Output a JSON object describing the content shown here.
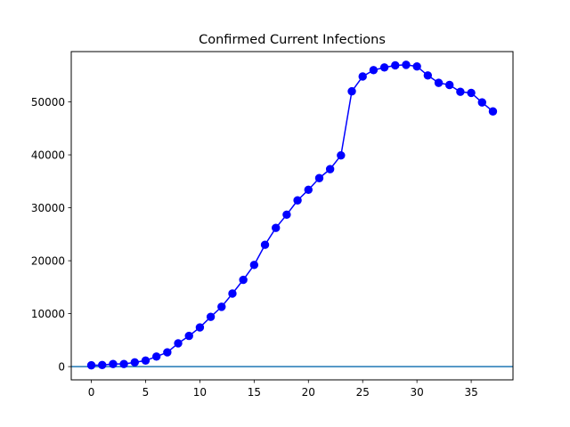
{
  "chart_data": {
    "type": "line",
    "title": "Confirmed Current Infections",
    "xlabel": "",
    "ylabel": "",
    "xlim": [
      -1.85,
      38.85
    ],
    "ylim": [
      -2500,
      59500
    ],
    "xticks": [
      0,
      5,
      10,
      15,
      20,
      25,
      30,
      35
    ],
    "yticks": [
      0,
      10000,
      20000,
      30000,
      40000,
      50000
    ],
    "grid": false,
    "legend": "none",
    "series": [
      {
        "color": "#0000ff",
        "marker": "circle",
        "x": [
          0,
          1,
          2,
          3,
          4,
          5,
          6,
          7,
          8,
          9,
          10,
          11,
          12,
          13,
          14,
          15,
          16,
          17,
          18,
          19,
          20,
          21,
          22,
          23,
          24,
          25,
          26,
          27,
          28,
          29,
          30,
          31,
          32,
          33,
          34,
          35,
          36,
          37
        ],
        "values": [
          250,
          300,
          500,
          500,
          800,
          1150,
          1900,
          2700,
          4400,
          5800,
          7400,
          9400,
          11300,
          13800,
          16400,
          19200,
          23000,
          26200,
          28700,
          31400,
          33400,
          35600,
          37300,
          39900,
          52000,
          54800,
          56000,
          56500,
          56900,
          57000,
          56700,
          55000,
          53600,
          53200,
          51900,
          51700,
          49900,
          48200
        ]
      }
    ],
    "reference_lines": [
      {
        "orientation": "horizontal",
        "value": 0,
        "color": "#1f77b4"
      }
    ]
  }
}
